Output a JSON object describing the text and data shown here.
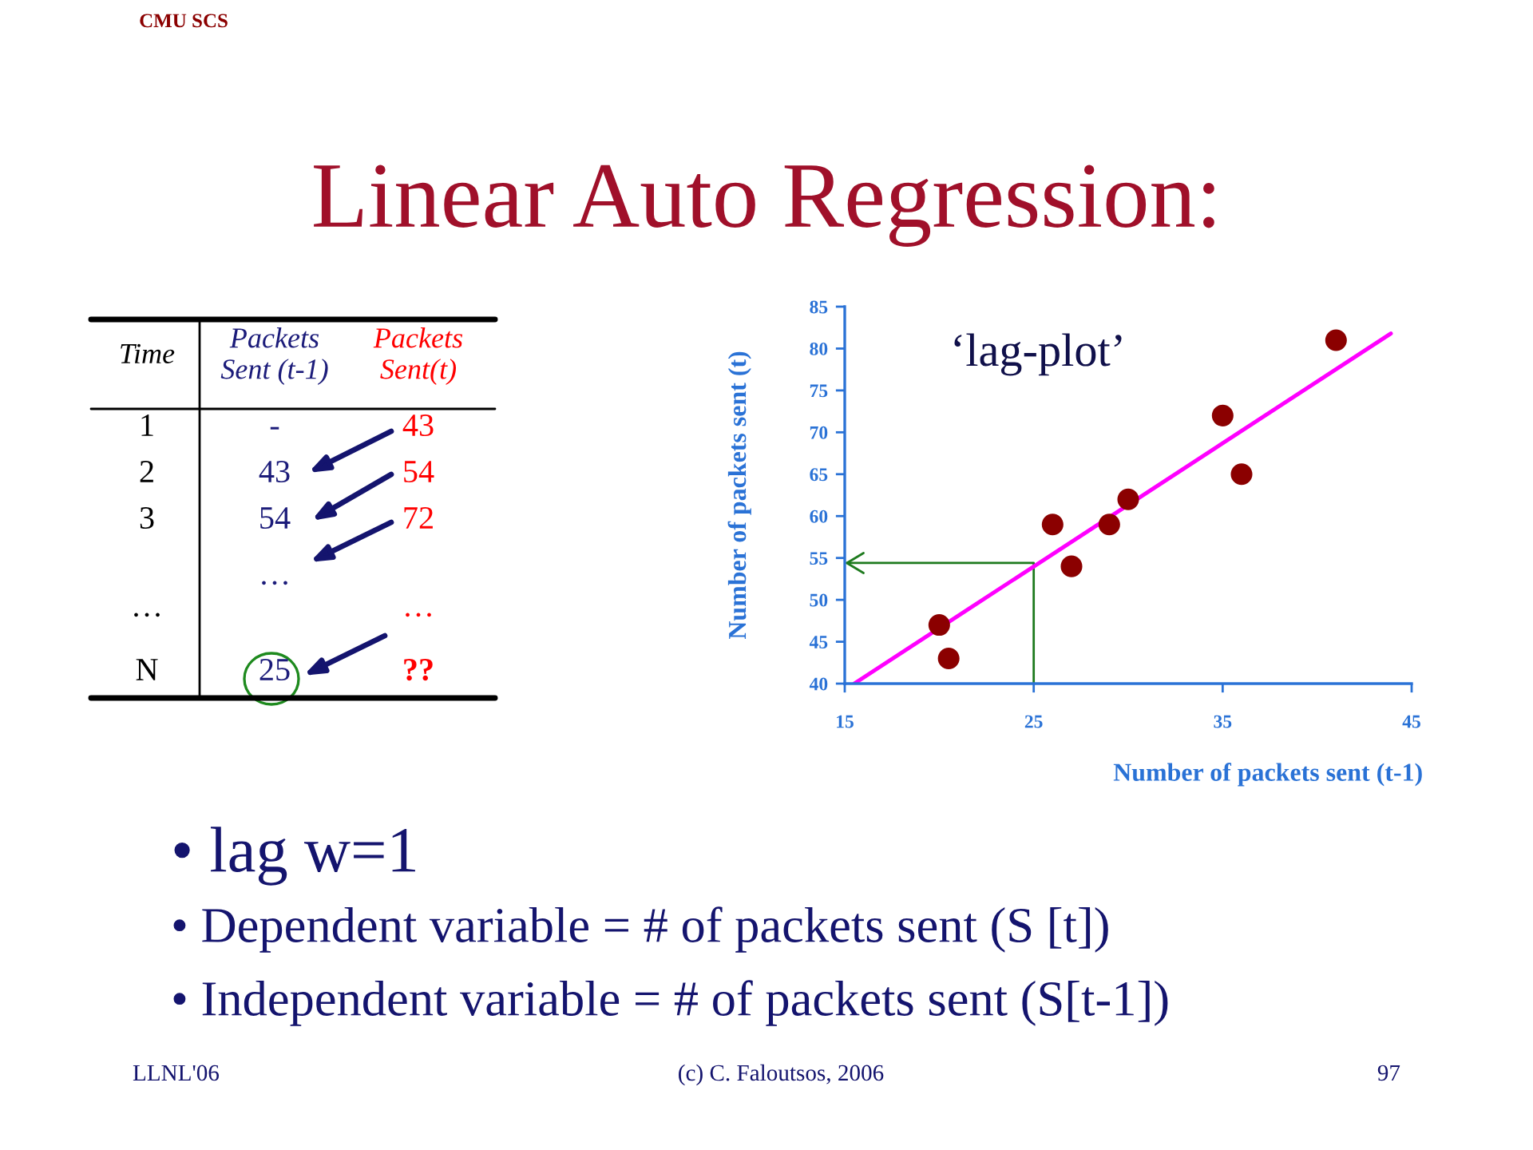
{
  "chart_data": [
    {
      "type": "other",
      "title": "Linear Auto Regression:",
      "annotations": [
        "CMU SCS"
      ]
    },
    {
      "type": "other",
      "categories": [
        "Time",
        "Packets Sent (t-1)",
        "Packets Sent(t)"
      ],
      "cell_labels": [
        [
          "1",
          "-",
          "43"
        ],
        [
          "2",
          "43",
          "54"
        ],
        [
          "3",
          "54",
          "72"
        ],
        [
          null,
          "…",
          null
        ],
        [
          "…",
          null,
          "…"
        ],
        [
          "N",
          "25",
          "??"
        ]
      ],
      "colors": [
        "#000000",
        "#1c1c7a",
        "#ff0000"
      ]
    },
    {
      "type": "scatter",
      "xlabel": "Number of packets sent (t-1)",
      "ylabel": "Number of packets sent (t)",
      "annotations": [
        "‘lag-plot’"
      ],
      "x": [
        20,
        20.5,
        26,
        27,
        29,
        30,
        35,
        36,
        41
      ],
      "series": [
        {
          "type": "scatter",
          "color": "#8b0000",
          "marker": "circle",
          "values": [
            47,
            43,
            59,
            54,
            59,
            62,
            72,
            65,
            81
          ]
        },
        {
          "type": "line",
          "color": "#ff00ff",
          "x": [
            15.5,
            43.9
          ],
          "values": [
            40,
            81.8
          ]
        }
      ],
      "xlim": [
        15,
        45
      ],
      "ylim": [
        40,
        85
      ],
      "xticks": [
        15,
        25,
        35,
        45
      ],
      "yticks": [
        40,
        45,
        50,
        55,
        60,
        65,
        70,
        75,
        80,
        85
      ],
      "grid": false,
      "legend": false
    },
    {
      "type": "other",
      "annotations": [
        "• lag w=1",
        "• Dependent variable = # of packets sent (S [t])",
        "• Independent variable = # of packets sent (S[t-1])",
        "LLNL'06",
        "(c) C. Faloutsos, 2006",
        "97"
      ]
    }
  ]
}
